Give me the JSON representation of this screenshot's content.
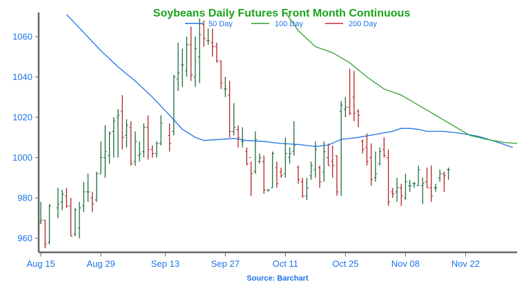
{
  "chart_data": {
    "type": "line",
    "title": "Soybeans Daily Futures Front Month Continuous",
    "source": "Source: Barchart",
    "ylim": [
      953,
      1072
    ],
    "y_ticks": [
      960,
      980,
      1000,
      1020,
      1040,
      1060
    ],
    "x_ticks": [
      "Aug 15",
      "Aug 29",
      "Sep 13",
      "Sep 27",
      "Oct 11",
      "Oct 25",
      "Nov 08",
      "Nov 22"
    ],
    "x_tick_days": [
      0,
      14,
      29,
      43,
      57,
      71,
      85,
      99
    ],
    "x_range": [
      -0.5,
      111
    ],
    "colors": {
      "up": "#1a6b3a",
      "down": "#b22222",
      "ma50": "#1a73e8",
      "ma100": "#2ca02c",
      "ma200": "#c62839",
      "title": "#1aa31a",
      "axis_text": "#1a73e8",
      "axis": "#666666"
    },
    "legend": [
      {
        "name": "50 Day",
        "color": "#1a73e8"
      },
      {
        "name": "100 Day",
        "color": "#2ca02c"
      },
      {
        "name": "200 Day",
        "color": "#c62839"
      }
    ],
    "series": [
      {
        "name": "50 Day",
        "points": [
          [
            6,
            1071
          ],
          [
            10,
            1062
          ],
          [
            14,
            1053
          ],
          [
            18,
            1045
          ],
          [
            22,
            1038
          ],
          [
            26,
            1030
          ],
          [
            30,
            1021
          ],
          [
            33,
            1014
          ],
          [
            36,
            1010
          ],
          [
            38,
            1008.5
          ],
          [
            42,
            1009
          ],
          [
            45,
            1009.5
          ],
          [
            48,
            1008.5
          ],
          [
            52,
            1008
          ],
          [
            56,
            1007
          ],
          [
            60,
            1006.5
          ],
          [
            64,
            1005.5
          ],
          [
            67,
            1006.2
          ],
          [
            70,
            1009
          ],
          [
            74,
            1010
          ],
          [
            78,
            1011.5
          ],
          [
            82,
            1013
          ],
          [
            84,
            1014.5
          ],
          [
            86,
            1014.5
          ],
          [
            88,
            1014
          ],
          [
            90,
            1013
          ],
          [
            94,
            1013
          ],
          [
            98,
            1012
          ],
          [
            102,
            1010.5
          ],
          [
            106,
            1008
          ],
          [
            110,
            1005
          ]
        ]
      },
      {
        "name": "100 Day",
        "points": [
          [
            57,
            1072
          ],
          [
            60,
            1063
          ],
          [
            64,
            1055
          ],
          [
            68,
            1052
          ],
          [
            72,
            1047
          ],
          [
            76,
            1040
          ],
          [
            80,
            1034
          ],
          [
            84,
            1031
          ],
          [
            88,
            1026
          ],
          [
            92,
            1021
          ],
          [
            96,
            1016
          ],
          [
            100,
            1011
          ],
          [
            104,
            1009
          ],
          [
            108,
            1007.5
          ],
          [
            111,
            1007
          ]
        ]
      },
      {
        "name": "200 Day",
        "points": []
      }
    ],
    "ohlc": [
      [
        0,
        978,
        967,
        968,
        969
      ],
      [
        1,
        969,
        955,
        969,
        957
      ],
      [
        2,
        977,
        957,
        958,
        976
      ],
      [
        4,
        985,
        970,
        975,
        977
      ],
      [
        5,
        984,
        974,
        978,
        982
      ],
      [
        6,
        985,
        975,
        981,
        976
      ],
      [
        7,
        980,
        961,
        976,
        961
      ],
      [
        8,
        975,
        961,
        962,
        974
      ],
      [
        9,
        978,
        960,
        965,
        975
      ],
      [
        10,
        988,
        973,
        976,
        983
      ],
      [
        11,
        992,
        978,
        983,
        983
      ],
      [
        12,
        983,
        973,
        980,
        977
      ],
      [
        13,
        993,
        978,
        979,
        992
      ],
      [
        14,
        1008,
        992,
        992,
        1000
      ],
      [
        15,
        1016,
        990,
        1000,
        1003
      ],
      [
        16,
        1013,
        997,
        1001,
        1012
      ],
      [
        17,
        1020,
        1000,
        1013,
        1018
      ],
      [
        18,
        1024,
        1000,
        1020,
        1021
      ],
      [
        19,
        1031,
        1004,
        1023,
        1010
      ],
      [
        20,
        1019,
        1005,
        1011,
        1016
      ],
      [
        21,
        1018,
        996,
        1015,
        997
      ],
      [
        22,
        1013,
        996,
        998,
        1008
      ],
      [
        23,
        1008,
        998,
        1001,
        1002
      ],
      [
        24,
        1017,
        1000,
        1003,
        1015
      ],
      [
        25,
        1021,
        999,
        1015,
        1004
      ],
      [
        26,
        1006,
        1000,
        1004,
        1002
      ],
      [
        27,
        1008,
        1000,
        1002,
        1007
      ],
      [
        28,
        1021,
        1006,
        1007,
        1017
      ],
      [
        30,
        1017,
        1003,
        1011,
        1007
      ],
      [
        31,
        1041,
        1011,
        1013,
        1040
      ],
      [
        32,
        1057,
        1033,
        1039,
        1042
      ],
      [
        33,
        1054,
        1035,
        1046,
        1046
      ],
      [
        34,
        1060,
        1040,
        1043,
        1056
      ],
      [
        35,
        1065,
        1038,
        1056,
        1041
      ],
      [
        36,
        1060,
        1035,
        1040,
        1054
      ],
      [
        37,
        1069,
        1037,
        1050,
        1061
      ],
      [
        38,
        1068,
        1055,
        1066,
        1059
      ],
      [
        39,
        1064,
        1056,
        1058,
        1058
      ],
      [
        40,
        1064,
        1050,
        1057,
        1055
      ],
      [
        41,
        1057,
        1047,
        1055,
        1048
      ],
      [
        42,
        1048,
        1034,
        1048,
        1037
      ],
      [
        43,
        1040,
        1030,
        1034,
        1034
      ],
      [
        44,
        1038,
        1010,
        1031,
        1013
      ],
      [
        45,
        1027,
        1011,
        1013,
        1015
      ],
      [
        46,
        1016,
        1005,
        1014,
        1010
      ],
      [
        47,
        1015,
        1005,
        1008,
        1008
      ],
      [
        48,
        1005,
        996,
        1003,
        997
      ],
      [
        49,
        998,
        981,
        1000,
        992
      ],
      [
        50,
        1013,
        992,
        993,
        1009
      ],
      [
        51,
        1002,
        997,
        998,
        1000
      ],
      [
        52,
        1001,
        982,
        998,
        984
      ],
      [
        53,
        984,
        983,
        984,
        984
      ],
      [
        54,
        1003,
        985,
        985,
        1002
      ],
      [
        55,
        998,
        985,
        995,
        987
      ],
      [
        56,
        995,
        990,
        993,
        991
      ],
      [
        57,
        1010,
        990,
        992,
        1002
      ],
      [
        58,
        1005,
        997,
        1000,
        1002
      ],
      [
        59,
        1018,
        1001,
        1003,
        1006
      ],
      [
        60,
        996,
        987,
        995,
        989
      ],
      [
        61,
        990,
        980,
        988,
        981
      ],
      [
        62,
        990,
        979,
        981,
        985
      ],
      [
        63,
        998,
        989,
        991,
        996
      ],
      [
        64,
        1008,
        990,
        994,
        1004
      ],
      [
        65,
        996,
        985,
        995,
        988
      ],
      [
        66,
        1008,
        988,
        993,
        1003
      ],
      [
        67,
        1007,
        996,
        1000,
        996
      ],
      [
        68,
        1006,
        990,
        998,
        996
      ],
      [
        69,
        1001,
        981,
        1001,
        983
      ],
      [
        70,
        1028,
        981,
        1023,
        1026
      ],
      [
        71,
        1030,
        1020,
        1024,
        1025
      ],
      [
        72,
        1044,
        1021,
        1025,
        1022
      ],
      [
        73,
        1043,
        1018,
        1030,
        1022
      ],
      [
        74,
        1024,
        1015,
        1023,
        1021
      ],
      [
        75,
        1009,
        1002,
        1008,
        1004
      ],
      [
        76,
        1012,
        996,
        1005,
        998
      ],
      [
        77,
        1007,
        986,
        1000,
        989
      ],
      [
        78,
        1003,
        988,
        990,
        992
      ],
      [
        79,
        1005,
        996,
        997,
        1003
      ],
      [
        80,
        1010,
        1000,
        1004,
        1001
      ],
      [
        81,
        1004,
        976,
        1000,
        978
      ],
      [
        82,
        985,
        980,
        983,
        982
      ],
      [
        83,
        990,
        978,
        983,
        985
      ],
      [
        84,
        987,
        976,
        985,
        981
      ],
      [
        85,
        992,
        979,
        980,
        988
      ],
      [
        86,
        989,
        983,
        986,
        986
      ],
      [
        87,
        988,
        985,
        987,
        987
      ],
      [
        88,
        996,
        986,
        986,
        994
      ],
      [
        89,
        990,
        977,
        986,
        987
      ],
      [
        90,
        995,
        985,
        988,
        985
      ],
      [
        91,
        996,
        978,
        985,
        981
      ],
      [
        92,
        987,
        983,
        985,
        985
      ],
      [
        93,
        994,
        988,
        990,
        992
      ],
      [
        94,
        993,
        983,
        992,
        991
      ],
      [
        95,
        995,
        989,
        994,
        994
      ]
    ]
  }
}
